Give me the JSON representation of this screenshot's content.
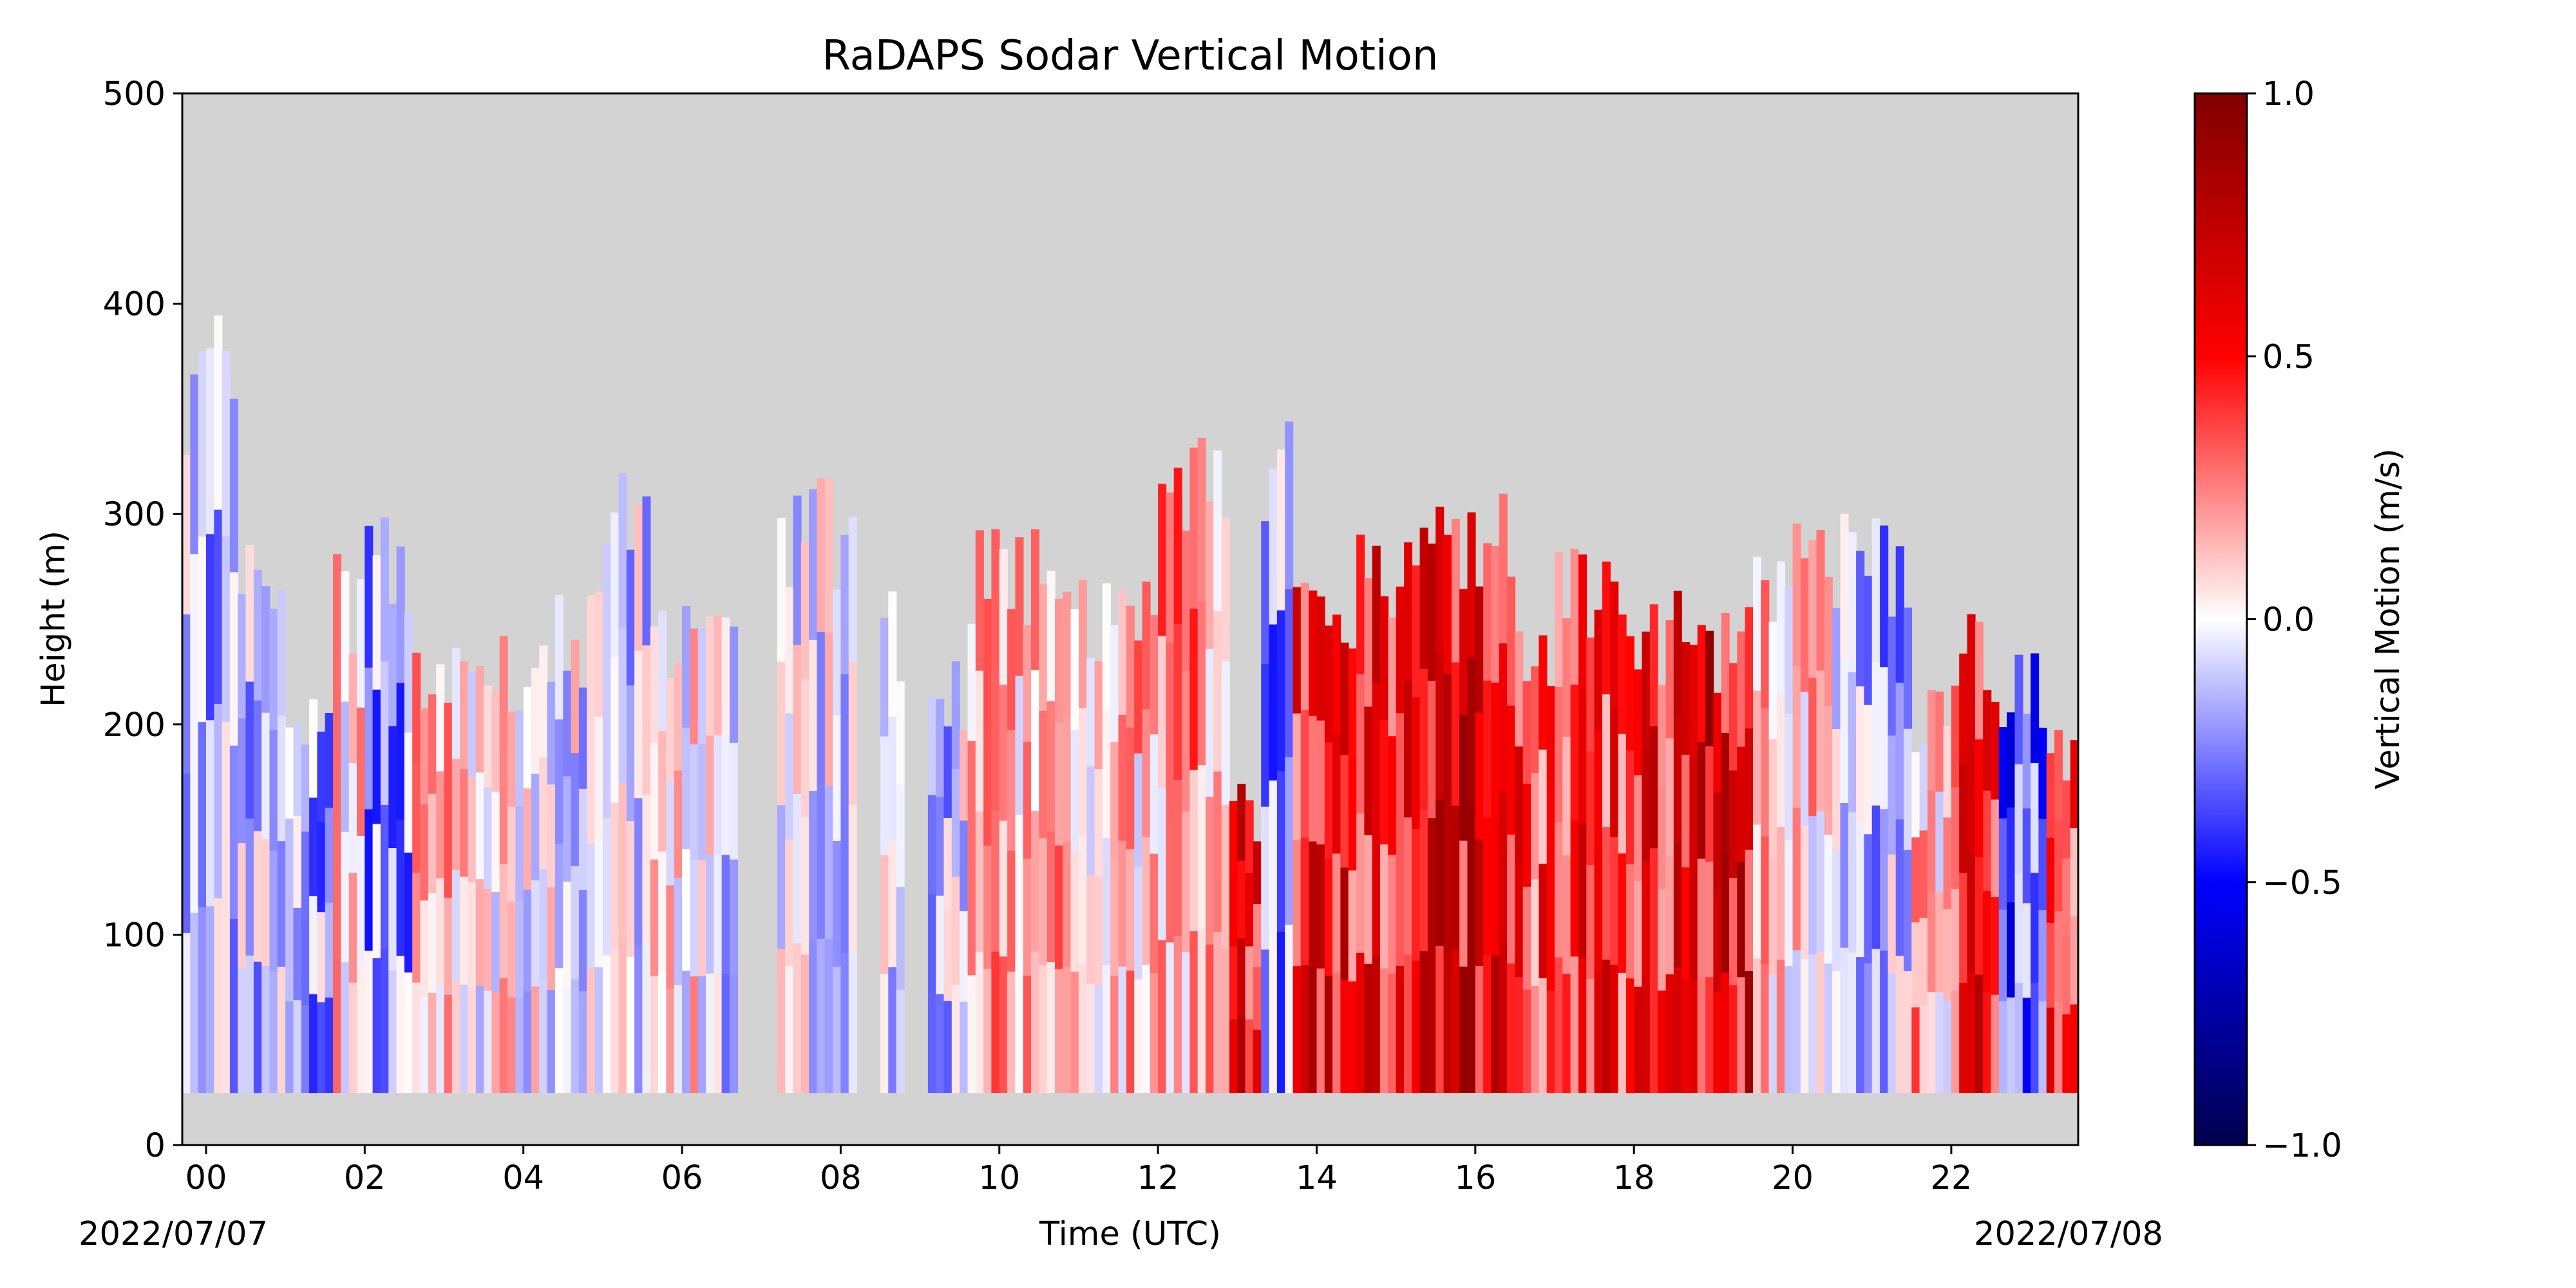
{
  "chart_data": {
    "type": "heatmap",
    "title": "RaDAPS Sodar Vertical Motion",
    "xlabel": "Time (UTC)",
    "ylabel": "Height (m)",
    "x_start_label": "2022/07/07",
    "x_end_label": "2022/07/08",
    "x_unit": "hours UTC",
    "xlim": [
      -0.3,
      23.6
    ],
    "ylim": [
      0,
      500
    ],
    "x_ticks": [
      {
        "value": 0,
        "label": "00"
      },
      {
        "value": 2,
        "label": "02"
      },
      {
        "value": 4,
        "label": "04"
      },
      {
        "value": 6,
        "label": "06"
      },
      {
        "value": 8,
        "label": "08"
      },
      {
        "value": 10,
        "label": "10"
      },
      {
        "value": 12,
        "label": "12"
      },
      {
        "value": 14,
        "label": "14"
      },
      {
        "value": 16,
        "label": "16"
      },
      {
        "value": 18,
        "label": "18"
      },
      {
        "value": 20,
        "label": "20"
      },
      {
        "value": 22,
        "label": "22"
      }
    ],
    "y_ticks": [
      {
        "value": 0,
        "label": "0"
      },
      {
        "value": 100,
        "label": "100"
      },
      {
        "value": 200,
        "label": "200"
      },
      {
        "value": 300,
        "label": "300"
      },
      {
        "value": 400,
        "label": "400"
      },
      {
        "value": 500,
        "label": "500"
      }
    ],
    "missing_color": "#d3d3d3",
    "data_bottom_m": 25,
    "colorbar": {
      "label": "Vertical Motion (m/s)",
      "colormap": "seismic",
      "vmin": -1.0,
      "vmax": 1.0,
      "ticks": [
        {
          "value": 1.0,
          "label": "1.0"
        },
        {
          "value": 0.5,
          "label": "0.5"
        },
        {
          "value": 0.0,
          "label": "0.0"
        },
        {
          "value": -0.5,
          "label": "−0.5"
        },
        {
          "value": -1.0,
          "label": "−1.0"
        }
      ],
      "stops": [
        {
          "value": -1.0,
          "color": "#00004c"
        },
        {
          "value": -0.5,
          "color": "#0000ff"
        },
        {
          "value": 0.0,
          "color": "#ffffff"
        },
        {
          "value": 0.5,
          "color": "#ff0000"
        },
        {
          "value": 1.0,
          "color": "#800000"
        }
      ]
    },
    "columns": [
      {
        "t0": -0.3,
        "t1": 0.4,
        "top_m": 400,
        "w": -0.15
      },
      {
        "t0": 0.4,
        "t1": 1.0,
        "top_m": 300,
        "w": -0.12
      },
      {
        "t0": 1.0,
        "t1": 1.6,
        "top_m": 220,
        "w": -0.2
      },
      {
        "t0": 1.6,
        "t1": 2.0,
        "top_m": 285,
        "w": 0.1
      },
      {
        "t0": 2.0,
        "t1": 2.6,
        "top_m": 300,
        "w": -0.2
      },
      {
        "t0": 2.6,
        "t1": 3.2,
        "top_m": 240,
        "w": 0.1
      },
      {
        "t0": 3.2,
        "t1": 4.0,
        "top_m": 250,
        "w": 0.05
      },
      {
        "t0": 4.0,
        "t1": 5.0,
        "top_m": 265,
        "w": -0.05
      },
      {
        "t0": 5.0,
        "t1": 5.6,
        "top_m": 320,
        "w": -0.1
      },
      {
        "t0": 5.6,
        "t1": 6.4,
        "top_m": 260,
        "w": 0.05
      },
      {
        "t0": 6.4,
        "t1": 6.7,
        "top_m": 265,
        "w": -0.08
      },
      {
        "t0": 7.2,
        "t1": 8.2,
        "top_m": 320,
        "w": -0.05
      },
      {
        "t0": 8.5,
        "t1": 8.8,
        "top_m": 265,
        "w": -0.1
      },
      {
        "t0": 9.1,
        "t1": 9.6,
        "top_m": 240,
        "w": -0.1
      },
      {
        "t0": 9.6,
        "t1": 11.0,
        "top_m": 300,
        "w": 0.15
      },
      {
        "t0": 11.0,
        "t1": 12.0,
        "top_m": 275,
        "w": 0.12
      },
      {
        "t0": 12.0,
        "t1": 12.9,
        "top_m": 340,
        "w": 0.2
      },
      {
        "t0": 12.9,
        "t1": 13.3,
        "top_m": 175,
        "w": 0.5
      },
      {
        "t0": 13.3,
        "t1": 13.7,
        "top_m": 345,
        "w": -0.2
      },
      {
        "t0": 13.7,
        "t1": 14.5,
        "top_m": 280,
        "w": 0.5
      },
      {
        "t0": 14.5,
        "t1": 15.5,
        "top_m": 300,
        "w": 0.5
      },
      {
        "t0": 15.5,
        "t1": 16.5,
        "top_m": 320,
        "w": 0.6
      },
      {
        "t0": 16.5,
        "t1": 17.0,
        "top_m": 260,
        "w": 0.4
      },
      {
        "t0": 17.0,
        "t1": 17.9,
        "top_m": 285,
        "w": 0.45
      },
      {
        "t0": 17.9,
        "t1": 18.6,
        "top_m": 265,
        "w": 0.5
      },
      {
        "t0": 18.6,
        "t1": 19.5,
        "top_m": 260,
        "w": 0.6
      },
      {
        "t0": 19.5,
        "t1": 20.5,
        "top_m": 300,
        "w": 0.1
      },
      {
        "t0": 20.5,
        "t1": 21.5,
        "top_m": 305,
        "w": -0.15
      },
      {
        "t0": 21.5,
        "t1": 22.1,
        "top_m": 220,
        "w": 0.15
      },
      {
        "t0": 22.1,
        "t1": 22.6,
        "top_m": 255,
        "w": 0.5
      },
      {
        "t0": 22.6,
        "t1": 23.2,
        "top_m": 240,
        "w": -0.35
      },
      {
        "t0": 23.2,
        "t1": 23.6,
        "top_m": 210,
        "w": 0.35
      }
    ]
  }
}
